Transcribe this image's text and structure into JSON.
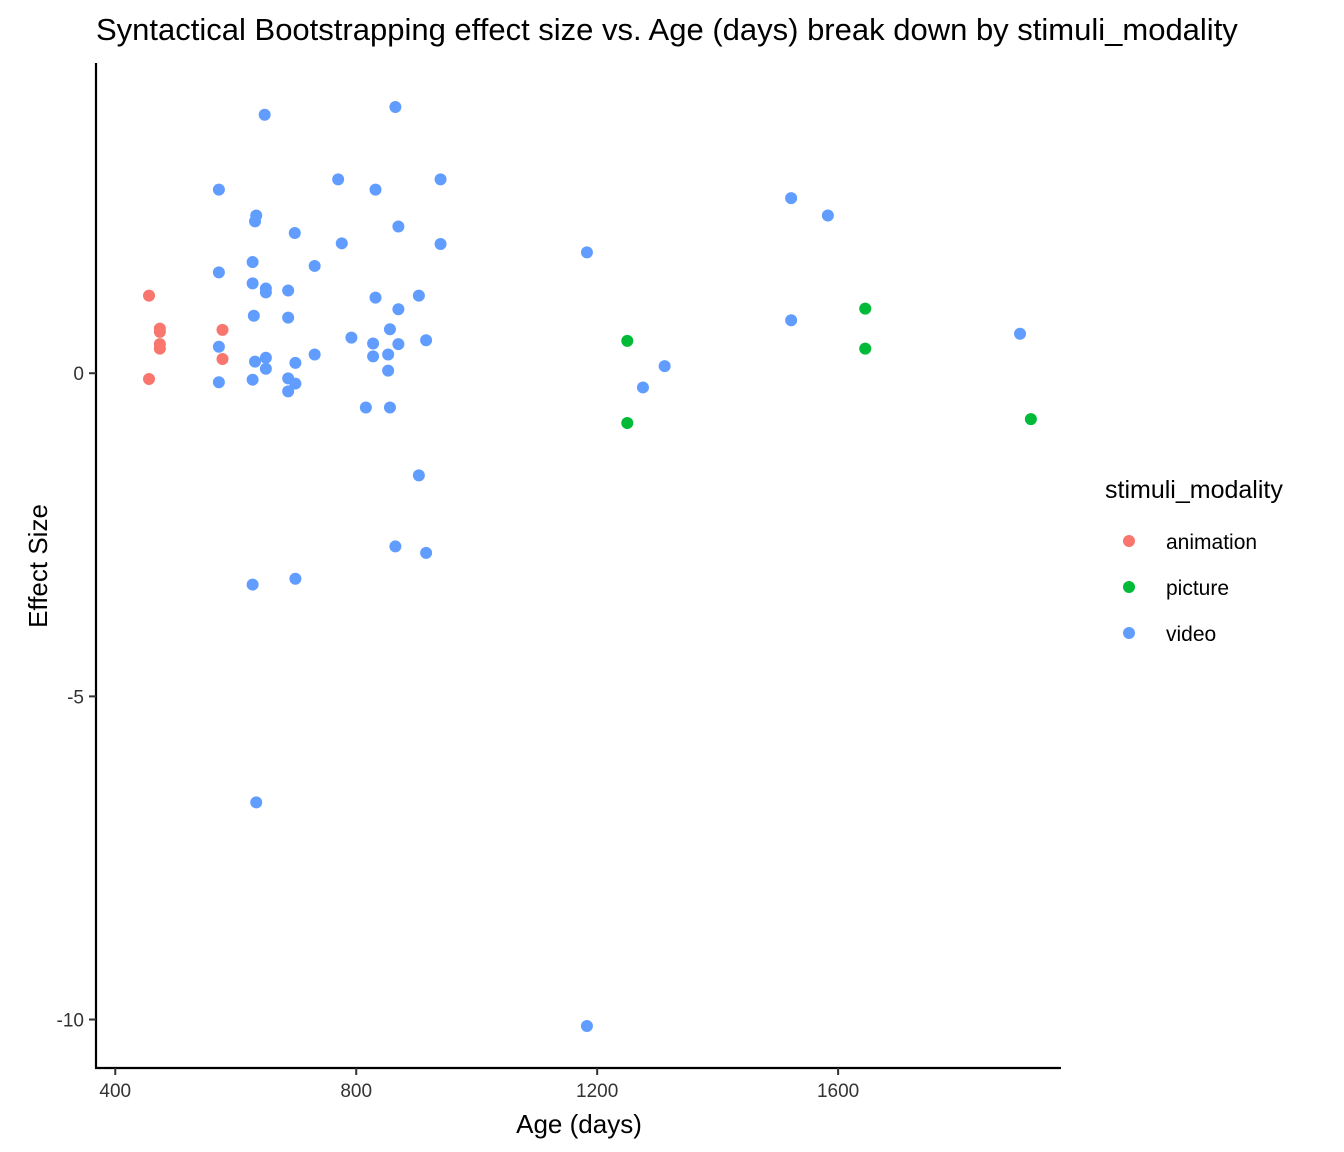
{
  "chart_data": {
    "type": "scatter",
    "title": "Syntactical Bootstrapping effect size vs. Age (days) break down by stimuli_modality",
    "xlabel": "Age (days)",
    "ylabel": "Effect Size",
    "xlim": [
      368,
      1970
    ],
    "ylim": [
      -10.75,
      4.8
    ],
    "x_ticks": [
      400,
      800,
      1200,
      1600
    ],
    "y_ticks": [
      0,
      -5,
      -10
    ],
    "x_tick_labels": [
      "400",
      "800",
      "1200",
      "1600"
    ],
    "y_tick_labels": [
      "0",
      "-5",
      "-10"
    ],
    "grid": false,
    "legend": {
      "title": "stimuli_modality",
      "position": "right",
      "entries": [
        "animation",
        "picture",
        "video"
      ]
    },
    "colors": {
      "animation": "#F8766D",
      "picture": "#00BA38",
      "video": "#619CFF"
    },
    "series": [
      {
        "name": "animation",
        "color": "#F8766D",
        "points": [
          {
            "x": 456,
            "y": 1.2
          },
          {
            "x": 456,
            "y": -0.09
          },
          {
            "x": 474,
            "y": 0.69
          },
          {
            "x": 474,
            "y": 0.64
          },
          {
            "x": 474,
            "y": 0.45
          },
          {
            "x": 474,
            "y": 0.38
          },
          {
            "x": 578,
            "y": 0.67
          },
          {
            "x": 578,
            "y": 0.22
          }
        ]
      },
      {
        "name": "picture",
        "color": "#00BA38",
        "points": [
          {
            "x": 1250,
            "y": 0.5
          },
          {
            "x": 1250,
            "y": -0.77
          },
          {
            "x": 1645,
            "y": 1.0
          },
          {
            "x": 1645,
            "y": 0.38
          },
          {
            "x": 1920,
            "y": -0.71
          }
        ]
      },
      {
        "name": "video",
        "color": "#619CFF",
        "points": [
          {
            "x": 648,
            "y": 4.0
          },
          {
            "x": 865,
            "y": 4.12
          },
          {
            "x": 572,
            "y": 2.84
          },
          {
            "x": 770,
            "y": 3.0
          },
          {
            "x": 832,
            "y": 2.84
          },
          {
            "x": 940,
            "y": 3.0
          },
          {
            "x": 634,
            "y": 2.44
          },
          {
            "x": 632,
            "y": 2.35
          },
          {
            "x": 698,
            "y": 2.17
          },
          {
            "x": 870,
            "y": 2.27
          },
          {
            "x": 776,
            "y": 2.01
          },
          {
            "x": 940,
            "y": 2.0
          },
          {
            "x": 628,
            "y": 1.72
          },
          {
            "x": 731,
            "y": 1.66
          },
          {
            "x": 572,
            "y": 1.56
          },
          {
            "x": 628,
            "y": 1.39
          },
          {
            "x": 650,
            "y": 1.31
          },
          {
            "x": 650,
            "y": 1.25
          },
          {
            "x": 687,
            "y": 1.28
          },
          {
            "x": 832,
            "y": 1.17
          },
          {
            "x": 904,
            "y": 1.2
          },
          {
            "x": 870,
            "y": 0.99
          },
          {
            "x": 630,
            "y": 0.89
          },
          {
            "x": 687,
            "y": 0.86
          },
          {
            "x": 856,
            "y": 0.68
          },
          {
            "x": 792,
            "y": 0.55
          },
          {
            "x": 916,
            "y": 0.51
          },
          {
            "x": 828,
            "y": 0.46
          },
          {
            "x": 870,
            "y": 0.45
          },
          {
            "x": 572,
            "y": 0.41
          },
          {
            "x": 731,
            "y": 0.29
          },
          {
            "x": 853,
            "y": 0.29
          },
          {
            "x": 828,
            "y": 0.26
          },
          {
            "x": 650,
            "y": 0.24
          },
          {
            "x": 632,
            "y": 0.18
          },
          {
            "x": 699,
            "y": 0.16
          },
          {
            "x": 650,
            "y": 0.07
          },
          {
            "x": 853,
            "y": 0.04
          },
          {
            "x": 687,
            "y": -0.08
          },
          {
            "x": 628,
            "y": -0.1
          },
          {
            "x": 572,
            "y": -0.14
          },
          {
            "x": 699,
            "y": -0.16
          },
          {
            "x": 687,
            "y": -0.28
          },
          {
            "x": 816,
            "y": -0.53
          },
          {
            "x": 856,
            "y": -0.53
          },
          {
            "x": 904,
            "y": -1.58
          },
          {
            "x": 865,
            "y": -2.68
          },
          {
            "x": 916,
            "y": -2.78
          },
          {
            "x": 699,
            "y": -3.18
          },
          {
            "x": 628,
            "y": -3.27
          },
          {
            "x": 634,
            "y": -6.64
          },
          {
            "x": 1183,
            "y": 1.87
          },
          {
            "x": 1183,
            "y": -10.1
          },
          {
            "x": 1312,
            "y": 0.11
          },
          {
            "x": 1276,
            "y": -0.22
          },
          {
            "x": 1522,
            "y": 2.71
          },
          {
            "x": 1583,
            "y": 2.44
          },
          {
            "x": 1522,
            "y": 0.82
          },
          {
            "x": 1902,
            "y": 0.61
          }
        ]
      }
    ]
  }
}
